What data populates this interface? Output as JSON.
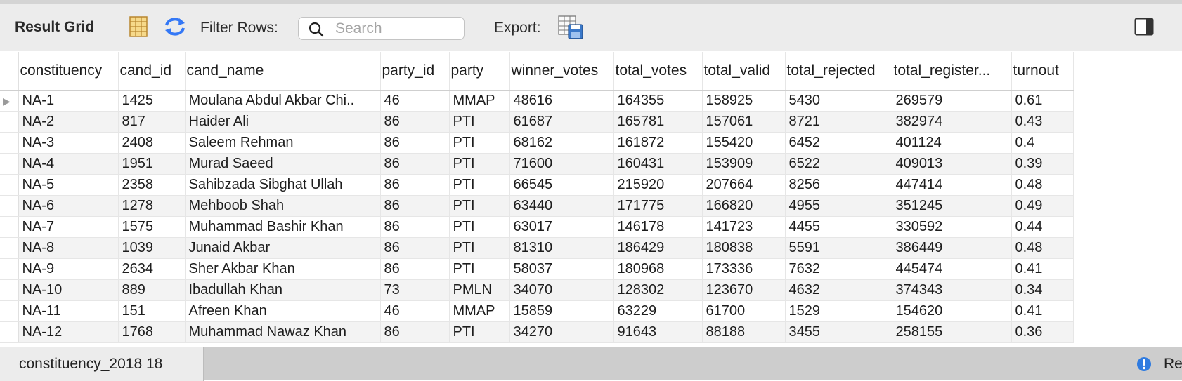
{
  "toolbar": {
    "title": "Result Grid",
    "filter_label": "Filter Rows:",
    "search_placeholder": "Search",
    "export_label": "Export:"
  },
  "grid": {
    "columns": [
      "constituency",
      "cand_id",
      "cand_name",
      "party_id",
      "party",
      "winner_votes",
      "total_votes",
      "total_valid",
      "total_rejected",
      "total_register...",
      "turnout"
    ],
    "rows": [
      [
        "NA-1",
        "1425",
        "Moulana Abdul Akbar Chi..",
        "46",
        "MMAP",
        "48616",
        "164355",
        "158925",
        "5430",
        "269579",
        "0.61"
      ],
      [
        "NA-2",
        "817",
        "Haider Ali",
        "86",
        "PTI",
        "61687",
        "165781",
        "157061",
        "8721",
        "382974",
        "0.43"
      ],
      [
        "NA-3",
        "2408",
        "Saleem Rehman",
        "86",
        "PTI",
        "68162",
        "161872",
        "155420",
        "6452",
        "401124",
        "0.4"
      ],
      [
        "NA-4",
        "1951",
        "Murad Saeed",
        "86",
        "PTI",
        "71600",
        "160431",
        "153909",
        "6522",
        "409013",
        "0.39"
      ],
      [
        "NA-5",
        "2358",
        "Sahibzada Sibghat Ullah",
        "86",
        "PTI",
        "66545",
        "215920",
        "207664",
        "8256",
        "447414",
        "0.48"
      ],
      [
        "NA-6",
        "1278",
        "Mehboob Shah",
        "86",
        "PTI",
        "63440",
        "171775",
        "166820",
        "4955",
        "351245",
        "0.49"
      ],
      [
        "NA-7",
        "1575",
        "Muhammad Bashir Khan",
        "86",
        "PTI",
        "63017",
        "146178",
        "141723",
        "4455",
        "330592",
        "0.44"
      ],
      [
        "NA-8",
        "1039",
        "Junaid Akbar",
        "86",
        "PTI",
        "81310",
        "186429",
        "180838",
        "5591",
        "386449",
        "0.48"
      ],
      [
        "NA-9",
        "2634",
        "Sher Akbar Khan",
        "86",
        "PTI",
        "58037",
        "180968",
        "173336",
        "7632",
        "445474",
        "0.41"
      ],
      [
        "NA-10",
        "889",
        "Ibadullah Khan",
        "73",
        "PMLN",
        "34070",
        "128302",
        "123670",
        "4632",
        "374343",
        "0.34"
      ],
      [
        "NA-11",
        "151",
        "Afreen Khan",
        "46",
        "MMAP",
        "15859",
        "63229",
        "61700",
        "1529",
        "154620",
        "0.41"
      ],
      [
        "NA-12",
        "1768",
        "Muhammad Nawaz Khan",
        "86",
        "PTI",
        "34270",
        "91643",
        "88188",
        "3455",
        "258155",
        "0.36"
      ]
    ]
  },
  "bottom": {
    "tab_label": "constituency_2018 18",
    "status_text": "Re"
  },
  "icons": {
    "form_view": "form-editor-icon",
    "refresh": "refresh-icon",
    "search": "search-icon",
    "export": "export-icon",
    "panel_toggle": "panel-toggle-icon",
    "status": "info-icon"
  },
  "colors": {
    "accent": "#3478f6",
    "toolbar_bg": "#ececec",
    "stripe": "#f3f3f3"
  }
}
